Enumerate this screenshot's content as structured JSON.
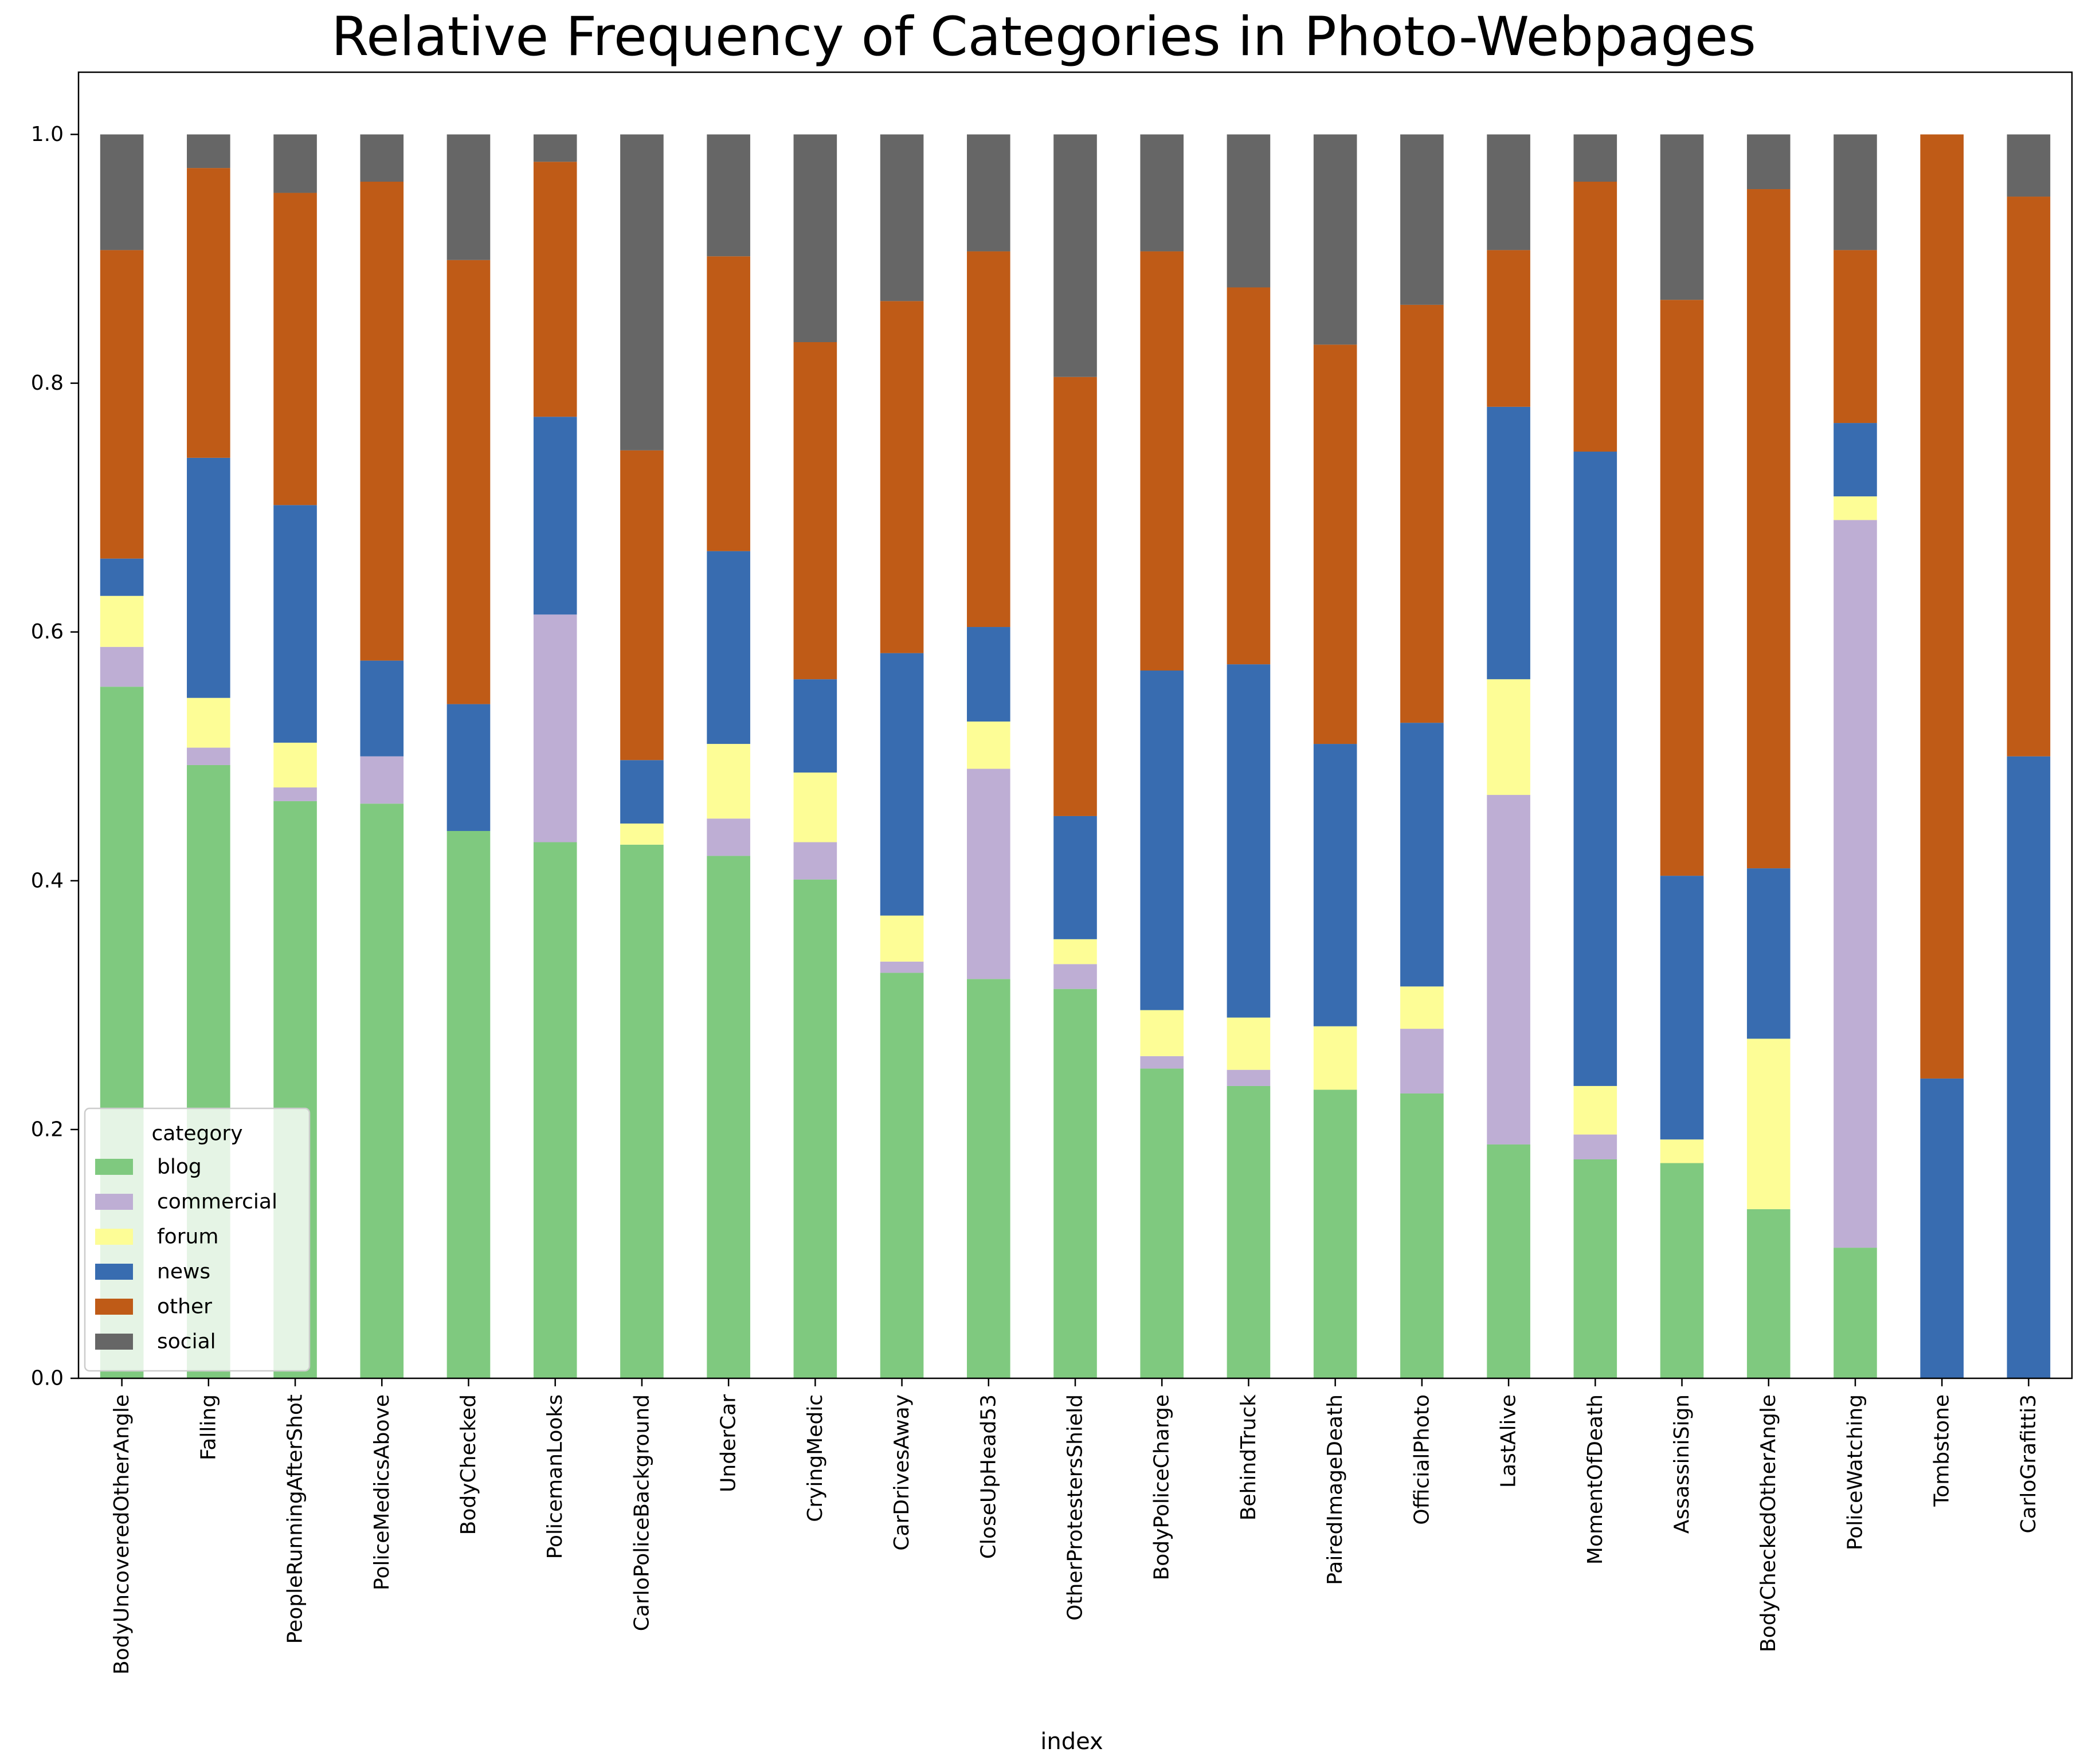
{
  "chart_data": {
    "type": "bar",
    "stacked": true,
    "title": "Relative Frequency of Categories in Photo-Webpages",
    "xlabel": "index",
    "ylabel": "",
    "ylim": [
      0,
      1.05
    ],
    "yticks": [
      0.0,
      0.2,
      0.4,
      0.6,
      0.8,
      1.0
    ],
    "grid": false,
    "legend": {
      "title": "category",
      "position": "lower-left"
    },
    "categories": [
      "BodyUncoveredOtherAngle",
      "Falling",
      "PeopleRunningAfterShot",
      "PoliceMedicsAbove",
      "BodyChecked",
      "PolicemanLooks",
      "CarloPoliceBackground",
      "UnderCar",
      "CryingMedic",
      "CarDrivesAway",
      "CloseUpHead53",
      "OtherProtestersShield",
      "BodyPoliceCharge",
      "BehindTruck",
      "PairedImageDeath",
      "OfficialPhoto",
      "LastAlive",
      "MomentOfDeath",
      "AssassiniSign",
      "BodyCheckedOtherAngle",
      "PoliceWatching",
      "Tombstone",
      "CarloGrafitti3"
    ],
    "series": [
      {
        "name": "blog",
        "color": "#7fc97f",
        "values": [
          0.556,
          0.493,
          0.464,
          0.462,
          0.44,
          0.431,
          0.429,
          0.42,
          0.401,
          0.326,
          0.321,
          0.313,
          0.249,
          0.235,
          0.232,
          0.229,
          0.188,
          0.176,
          0.173,
          0.136,
          0.105,
          0.0,
          0.0
        ]
      },
      {
        "name": "commercial",
        "color": "#beaed4",
        "values": [
          0.032,
          0.014,
          0.011,
          0.038,
          0.0,
          0.183,
          0.0,
          0.03,
          0.03,
          0.009,
          0.169,
          0.02,
          0.01,
          0.013,
          0.0,
          0.052,
          0.281,
          0.02,
          0.0,
          0.0,
          0.585,
          0.0,
          0.0
        ]
      },
      {
        "name": "forum",
        "color": "#fdfd96",
        "values": [
          0.041,
          0.04,
          0.036,
          0.0,
          0.0,
          0.0,
          0.017,
          0.06,
          0.056,
          0.037,
          0.038,
          0.02,
          0.037,
          0.042,
          0.051,
          0.034,
          0.093,
          0.039,
          0.019,
          0.137,
          0.019,
          0.0,
          0.0
        ]
      },
      {
        "name": "news",
        "color": "#386cb0",
        "values": [
          0.03,
          0.193,
          0.191,
          0.077,
          0.102,
          0.159,
          0.051,
          0.155,
          0.075,
          0.211,
          0.076,
          0.099,
          0.273,
          0.284,
          0.227,
          0.212,
          0.219,
          0.51,
          0.212,
          0.137,
          0.059,
          0.241,
          0.5
        ]
      },
      {
        "name": "other",
        "color": "#bf5b17",
        "values": [
          0.248,
          0.233,
          0.251,
          0.385,
          0.357,
          0.205,
          0.249,
          0.237,
          0.271,
          0.283,
          0.302,
          0.353,
          0.337,
          0.303,
          0.321,
          0.336,
          0.126,
          0.217,
          0.463,
          0.546,
          0.139,
          0.759,
          0.45
        ]
      },
      {
        "name": "social",
        "color": "#666666",
        "values": [
          0.093,
          0.027,
          0.047,
          0.038,
          0.101,
          0.022,
          0.254,
          0.098,
          0.167,
          0.134,
          0.094,
          0.195,
          0.094,
          0.123,
          0.169,
          0.137,
          0.093,
          0.038,
          0.133,
          0.044,
          0.093,
          0.0,
          0.05
        ]
      }
    ]
  }
}
